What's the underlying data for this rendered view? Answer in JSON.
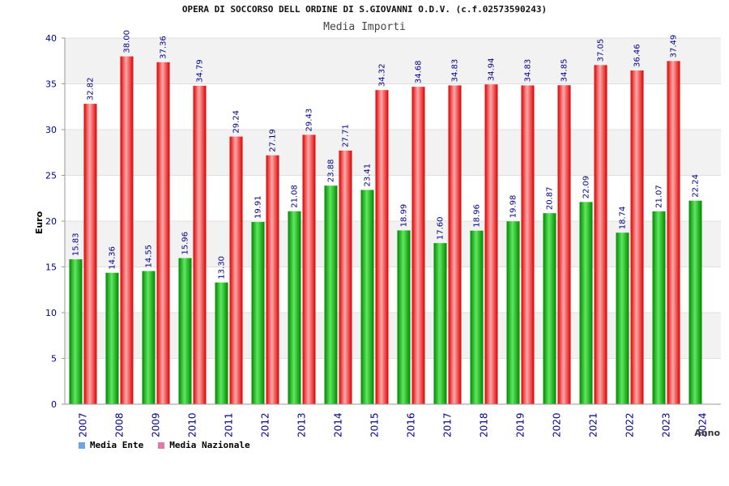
{
  "header": {
    "title": "OPERA DI SOCCORSO DELL ORDINE DI S.GIOVANNI O.D.V. (c.f.02573590243)",
    "subtitle": "Media Importi"
  },
  "legend": {
    "items": [
      {
        "label": "Media Ente",
        "color": "#6aa6e0"
      },
      {
        "label": "Media Nazionale",
        "color": "#e07aa8"
      }
    ]
  },
  "colors": {
    "ente_light": "#5fe85f",
    "ente_dark": "#008800",
    "naz_light": "#ffa9a9",
    "naz_dark": "#dd0000",
    "grid_band": "#f2f2f2",
    "tick_label": "#00008b"
  },
  "chart_data": {
    "type": "bar",
    "title": "OPERA DI SOCCORSO DELL ORDINE DI S.GIOVANNI O.D.V. (c.f.02573590243)",
    "subtitle": "Media Importi",
    "xlabel": "Anno",
    "ylabel": "Euro",
    "ylim": [
      0,
      40
    ],
    "yticks": [
      0,
      5,
      10,
      15,
      20,
      25,
      30,
      35,
      40
    ],
    "grid": true,
    "legend_position": "bottom-left",
    "categories": [
      "2007",
      "2008",
      "2009",
      "2010",
      "2011",
      "2012",
      "2013",
      "2014",
      "2015",
      "2016",
      "2017",
      "2018",
      "2019",
      "2020",
      "2021",
      "2022",
      "2023",
      "2024"
    ],
    "series": [
      {
        "name": "Media Ente",
        "values": [
          15.83,
          14.36,
          14.55,
          15.96,
          13.3,
          19.91,
          21.08,
          23.88,
          23.41,
          18.99,
          17.6,
          18.96,
          19.98,
          20.87,
          22.09,
          18.74,
          21.07,
          22.24
        ],
        "labels": [
          "15.83",
          "14.36",
          "14.55",
          "15.96",
          "13.30",
          "19.91",
          "21.08",
          "23.88",
          "23.41",
          "18.99",
          "17.60",
          "18.96",
          "19.98",
          "20.87",
          "22.09",
          "18.74",
          "21.07",
          "22.24"
        ]
      },
      {
        "name": "Media Nazionale",
        "values": [
          32.82,
          38.0,
          37.36,
          34.79,
          29.24,
          27.19,
          29.43,
          27.71,
          34.32,
          34.68,
          34.83,
          34.94,
          34.83,
          34.85,
          37.05,
          36.46,
          37.49,
          null
        ],
        "labels": [
          "32.82",
          "38.00",
          "37.36",
          "34.79",
          "29.24",
          "27.19",
          "29.43",
          "27.71",
          "34.32",
          "34.68",
          "34.83",
          "34.94",
          "34.83",
          "34.85",
          "37.05",
          "36.46",
          "37.49",
          ""
        ]
      }
    ]
  }
}
